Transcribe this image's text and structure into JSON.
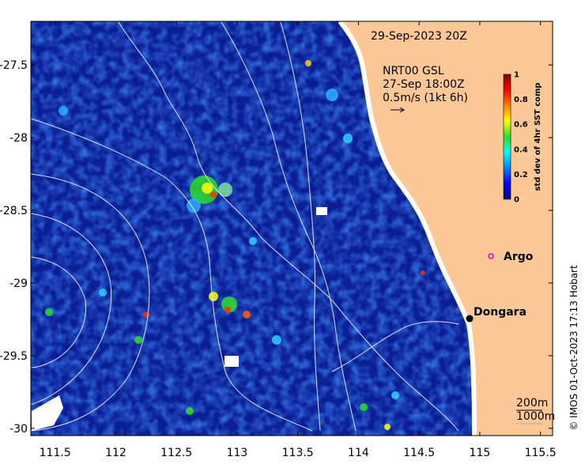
{
  "header": {
    "timestamp": "29-Sep-2023 20Z",
    "current_source": "NRT00 GSL",
    "current_time": "27-Sep 18:00Z",
    "vector_scale": "0.5m/s (1kt 6h)"
  },
  "colorbar": {
    "label": "std dev of 4hr SST comp",
    "ticks": [
      "0",
      "0.2",
      "0.4",
      "0.6",
      "0.8",
      "1"
    ],
    "range": [
      0,
      1
    ]
  },
  "places": [
    {
      "name": "Argo",
      "lon": 115.05,
      "lat": -28.8,
      "symbol": "magenta-circle"
    },
    {
      "name": "Dongara",
      "lon": 114.93,
      "lat": -29.25,
      "symbol": "black-dot"
    }
  ],
  "bathymetry": {
    "label_200": "200m",
    "label_1000": "1000m"
  },
  "axes": {
    "x_ticks": [
      "111.5",
      "112",
      "112.5",
      "113",
      "113.5",
      "114",
      "114.5",
      "115",
      "115.5"
    ],
    "y_ticks": [
      "-27.5",
      "-28",
      "-28.5",
      "-29",
      "-29.5",
      "-30"
    ],
    "x_range": [
      111.3,
      115.6
    ],
    "y_range": [
      -30.05,
      -27.2
    ]
  },
  "colors": {
    "land": "#fcc896",
    "ocean_deep": "#0a1a8c",
    "argo": "#e000e0"
  },
  "credit": "© IMOS 01-Oct-2023 17:13 Hobart"
}
